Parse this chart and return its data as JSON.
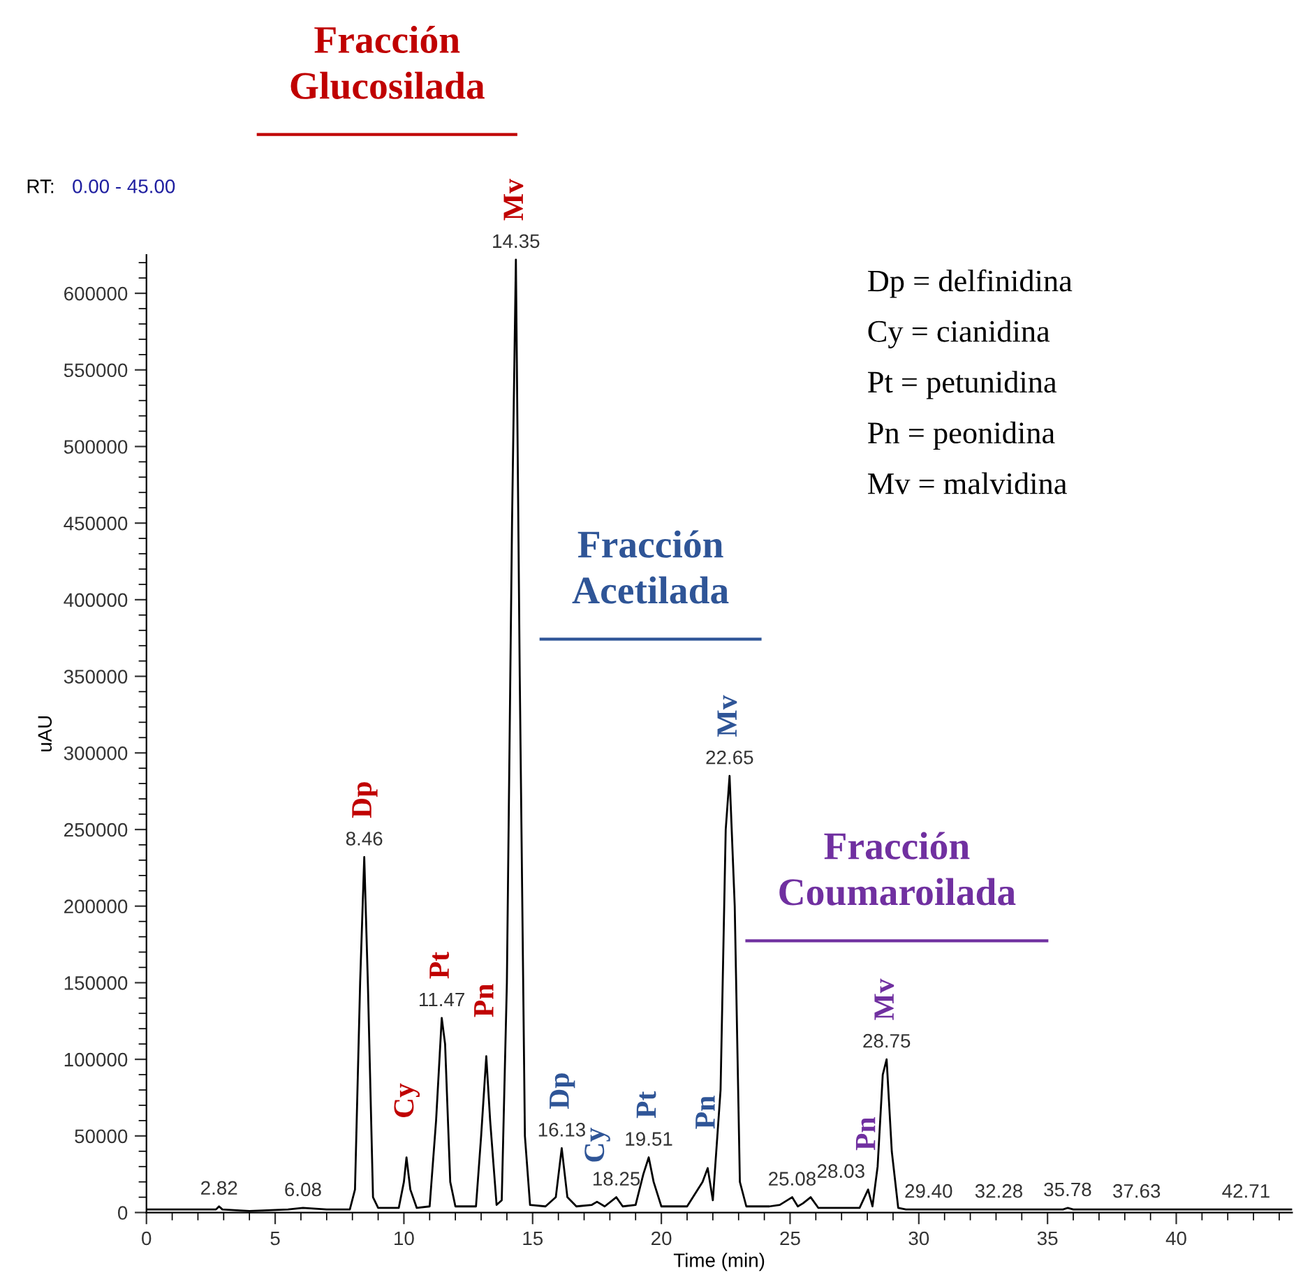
{
  "chart_data": {
    "type": "line",
    "xlabel": "Time (min)",
    "ylabel": "uAU",
    "xlim": [
      0,
      44.5
    ],
    "ylim": [
      0,
      625000
    ],
    "xticks": [
      0,
      5,
      10,
      15,
      20,
      25,
      30,
      35,
      40
    ],
    "yticks": [
      0,
      50000,
      100000,
      150000,
      200000,
      250000,
      300000,
      350000,
      400000,
      450000,
      500000,
      550000,
      600000
    ],
    "grid": false,
    "legend": false,
    "marker": "none",
    "line_style": "solid",
    "series": [
      {
        "color": "#000000",
        "x": [
          0,
          2.7,
          2.82,
          2.95,
          4,
          5.5,
          6.08,
          7,
          7.9,
          8.1,
          8.3,
          8.46,
          8.6,
          8.8,
          9.0,
          9.8,
          10.0,
          10.1,
          10.25,
          10.5,
          11.0,
          11.25,
          11.47,
          11.6,
          11.8,
          12.0,
          12.8,
          13.0,
          13.2,
          13.35,
          13.6,
          13.8,
          14.0,
          14.2,
          14.35,
          14.5,
          14.7,
          14.9,
          15.5,
          15.9,
          16.13,
          16.35,
          16.7,
          17.3,
          17.5,
          17.8,
          18.25,
          18.5,
          19.0,
          19.3,
          19.51,
          19.7,
          20.0,
          21.0,
          21.6,
          21.8,
          22.0,
          22.3,
          22.5,
          22.65,
          22.85,
          23.05,
          23.3,
          24.2,
          24.6,
          25.08,
          25.3,
          25.5,
          25.8,
          26.1,
          27.7,
          28.03,
          28.2,
          28.4,
          28.6,
          28.75,
          28.95,
          29.2,
          29.5,
          35.6,
          35.78,
          36.0,
          44.5
        ],
        "values": [
          2000,
          2000,
          4000,
          2000,
          1000,
          2000,
          3000,
          2000,
          2000,
          15000,
          150000,
          232000,
          150000,
          10000,
          3000,
          3000,
          20000,
          36000,
          15000,
          3000,
          4000,
          60000,
          127000,
          110000,
          20000,
          4000,
          4000,
          50000,
          102000,
          60000,
          5000,
          8000,
          150000,
          450000,
          622000,
          350000,
          50000,
          5000,
          4000,
          10000,
          42000,
          10000,
          4000,
          5000,
          7000,
          4000,
          10000,
          4000,
          5000,
          25000,
          36000,
          20000,
          4000,
          4000,
          20000,
          29000,
          8000,
          80000,
          250000,
          285000,
          200000,
          20000,
          4000,
          4000,
          5000,
          10000,
          4000,
          6000,
          10000,
          3000,
          3000,
          15000,
          4000,
          30000,
          90000,
          100000,
          40000,
          3000,
          2000,
          2000,
          3000,
          2000,
          2000
        ]
      }
    ],
    "annotations": [
      "RT:",
      "0.00 - 45.00",
      "Dp = delfinidina",
      "Cy = cianidina",
      "Pt = petunidina",
      "Pn = peonidina",
      "Mv = malvidina",
      "Fracción\nGlucosilada",
      "Fracción\nAcetilada",
      "Fracción\nCoumaroilada",
      {
        "text": "2.82",
        "x": 2.82,
        "y": 4000
      },
      {
        "text": "6.08",
        "x": 6.08,
        "y": 3000
      },
      {
        "text": "8.46",
        "x": 8.46,
        "y": 232000
      },
      {
        "text": "11.47",
        "x": 11.47,
        "y": 127000
      },
      {
        "text": "14.35",
        "x": 14.35,
        "y": 622000
      },
      {
        "text": "16.13",
        "x": 16.13,
        "y": 42000
      },
      {
        "text": "18.25",
        "x": 18.25,
        "y": 10000
      },
      {
        "text": "19.51",
        "x": 19.51,
        "y": 36000
      },
      {
        "text": "22.65",
        "x": 22.65,
        "y": 285000
      },
      {
        "text": "25.08",
        "x": 25.08,
        "y": 10000
      },
      {
        "text": "28.03",
        "x": 28.03,
        "y": 15000
      },
      {
        "text": "28.75",
        "x": 28.75,
        "y": 100000
      },
      {
        "text": "29.40",
        "x": 29.4,
        "y": 2000
      },
      {
        "text": "32.28",
        "x": 32.28,
        "y": 2000
      },
      {
        "text": "35.78",
        "x": 35.78,
        "y": 3000
      },
      {
        "text": "37.63",
        "x": 37.63,
        "y": 2000
      },
      {
        "text": "42.71",
        "x": 42.71,
        "y": 2000
      },
      {
        "text": "Dp",
        "x": 8.46,
        "y": 232000
      },
      {
        "text": "Cy",
        "x": 10.1,
        "y": 36000
      },
      {
        "text": "Pt",
        "x": 11.47,
        "y": 127000
      },
      {
        "text": "Pn",
        "x": 13.2,
        "y": 102000
      },
      {
        "text": "Mv",
        "x": 14.35,
        "y": 622000
      },
      {
        "text": "Dp",
        "x": 16.13,
        "y": 42000
      },
      {
        "text": "Cy",
        "x": 17.5,
        "y": 7000
      },
      {
        "text": "Pt",
        "x": 19.51,
        "y": 36000
      },
      {
        "text": "Pn",
        "x": 21.8,
        "y": 29000
      },
      {
        "text": "Mv",
        "x": 22.65,
        "y": 285000
      },
      {
        "text": "Pn",
        "x": 28.03,
        "y": 15000
      },
      {
        "text": "Mv",
        "x": 28.75,
        "y": 100000
      }
    ]
  }
}
